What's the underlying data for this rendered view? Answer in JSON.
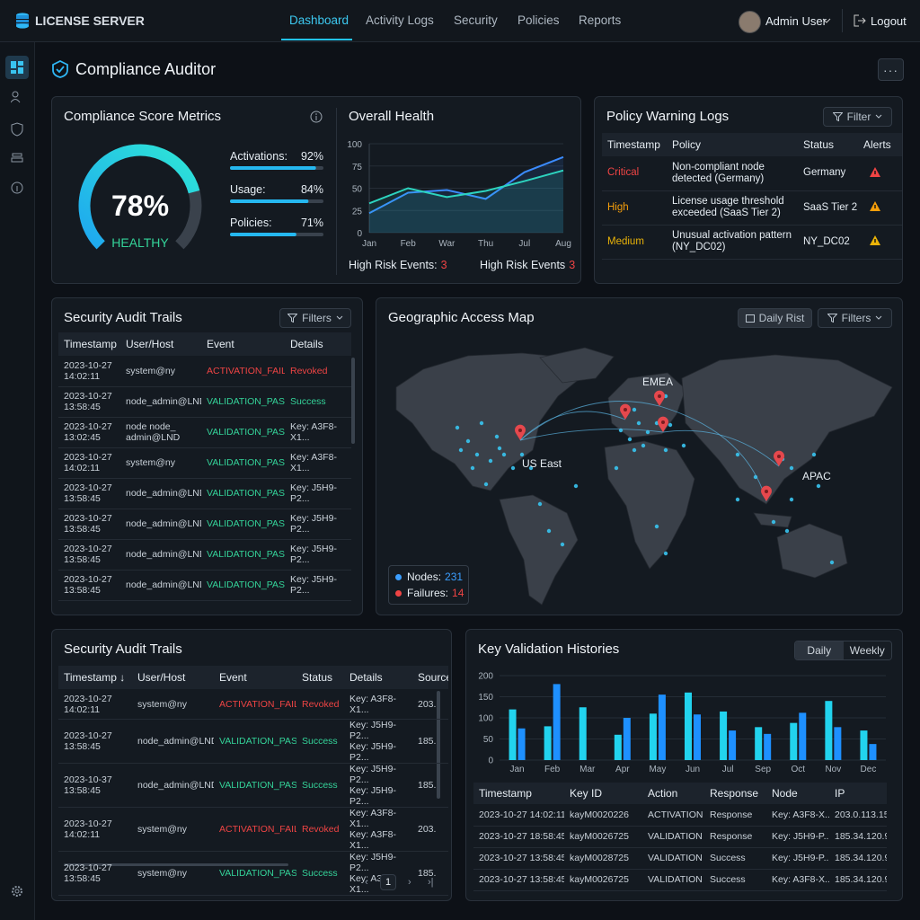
{
  "nav": {
    "brand": "LICENSE SERVER",
    "tabs": [
      "Dashboard",
      "Activity Logs",
      "Security",
      "Policies",
      "Reports"
    ],
    "user": "Admin User",
    "logout": "Logout"
  },
  "page_title": "Compliance Auditor",
  "compliance": {
    "title": "Compliance Score Metrics",
    "score": {
      "value": 78,
      "label": "78%"
    },
    "status": "HEALTHY",
    "metrics": [
      {
        "label": "Activations:",
        "value": 92,
        "value_label": "92%"
      },
      {
        "label": "Usage:",
        "value": 84,
        "value_label": "84%"
      },
      {
        "label": "Policies:",
        "value": 71,
        "value_label": "71%"
      }
    ]
  },
  "health": {
    "title": "Overall Health",
    "chart_data": {
      "type": "line",
      "categories": [
        "Jan",
        "Feb",
        "War",
        "Thu",
        "Jul",
        "Aug"
      ],
      "series": [
        {
          "color": "#3b8bff",
          "values": [
            22,
            45,
            48,
            38,
            68,
            85
          ]
        },
        {
          "color": "#2dd4bf",
          "values": [
            33,
            50,
            40,
            47,
            58,
            70
          ]
        }
      ],
      "ylim": [
        0,
        100
      ],
      "yticks": [
        0,
        25,
        50,
        75,
        100
      ]
    },
    "stats": [
      {
        "label": "High Risk Events:",
        "value": 3
      },
      {
        "label": "High Risk Events",
        "value": 3
      }
    ]
  },
  "policy_logs": {
    "title": "Policy Warning Logs",
    "filter": "Filter",
    "headers": [
      "Timestamp",
      "Policy",
      "Status",
      "Alerts"
    ],
    "rows": [
      {
        "cells": [
          "Critical",
          "Non-compliant node detected (Germany)",
          "Germany"
        ],
        "color": "#ef4444"
      },
      {
        "cells": [
          "High",
          "License usage threshold exceeded (SaaS Tier 2)",
          "SaaS Tier 2"
        ],
        "color": "#f59e0b"
      },
      {
        "cells": [
          "Medium",
          "Unusual activation pattern (NY_DC02)",
          "NY_DC02"
        ],
        "color": "#eab308"
      }
    ]
  },
  "audit_trails": {
    "title": "Security Audit Trails",
    "filter": "Filters",
    "headers": [
      "Timestamp",
      "User/Host",
      "Event",
      "Details"
    ],
    "rows": [
      {
        "cells": [
          "2023-10-27 14:02:11",
          "system@ny",
          "ACTIVATION_FAIL",
          "Revoked"
        ],
        "color": "#ef4444",
        "details_color": "#ef4444"
      },
      {
        "cells": [
          "2023-10-27 13:58:45",
          "node_admin@LND",
          "VALIDATION_PASS",
          "Success"
        ],
        "color": "#34d399",
        "details_color": "#34d399"
      },
      {
        "cells": [
          "2023-10-27 13:02:45",
          "node node_ admin@LND",
          "VALIDATION_PASS",
          "Key: A3F8-X1..."
        ],
        "color": "#34d399"
      },
      {
        "cells": [
          "2023-10-27 14:02:11",
          "system@ny",
          "VALIDATION_PASS",
          "Key: A3F8-X1..."
        ],
        "color": "#34d399"
      },
      {
        "cells": [
          "2023-10-27 13:58:45",
          "node_admin@LND",
          "VALIDATION_PASS",
          "Key: J5H9-P2..."
        ],
        "color": "#34d399"
      },
      {
        "cells": [
          "2023-10-27 13:58:45",
          "node_admin@LND",
          "VALIDATION_PASS",
          "Key: J5H9-P2..."
        ],
        "color": "#34d399"
      },
      {
        "cells": [
          "2023-10-27 13:58:45",
          "node_admin@LND",
          "VALIDATION_PASS",
          "Key: J5H9-P2..."
        ],
        "color": "#34d399"
      },
      {
        "cells": [
          "2023-10-27 13:58:45",
          "node_admin@LND",
          "VALIDATION_PASS",
          "Key: J5H9-P2..."
        ],
        "color": "#34d399"
      }
    ]
  },
  "map": {
    "title": "Geographic Access Map",
    "range": "Daily Rist",
    "filter": "Filters",
    "regions": [
      "EMEA",
      "US East",
      "APAC"
    ],
    "legend": [
      {
        "label": "Nodes:",
        "value": 231,
        "color": "#3b9eff"
      },
      {
        "label": "Failures:",
        "value": 14,
        "color": "#ef4444"
      }
    ]
  },
  "audit_trails_2": {
    "title": "Security Audit Trails",
    "headers": [
      "Timestamp ↓",
      "User/Host",
      "Event",
      "Status",
      "Details",
      "Source"
    ],
    "rows": [
      {
        "cells": [
          "2023-10-27 14:02:11",
          "system@ny",
          "ACTIVATION_FAIL",
          "Revoked",
          "Key: A3F8-X1...",
          "203."
        ],
        "color": "#ef4444"
      },
      {
        "cells": [
          "2023-10-27 13:58:45",
          "node_admin@LND",
          "VALIDATION_PASS",
          "Success",
          "Key: J5H9-P2...\nKey: J5H9-P2...",
          "185."
        ],
        "color": "#34d399"
      },
      {
        "cells": [
          "2023-10-37 13:58:45",
          "node_admin@LND",
          "VALIDATION_PASS",
          "Success",
          "Key: J5H9-P2...\nKey: J5H9-P2...",
          "185."
        ],
        "color": "#34d399"
      },
      {
        "cells": [
          "2023-10-27 14:02:11",
          "system@ny",
          "ACTIVATION_FAIL",
          "Revoked",
          "Key: A3F8-X1...\nKey: A3F8-X1...",
          "203."
        ],
        "color": "#ef4444"
      },
      {
        "cells": [
          "2023-10-27 13:58:45",
          "system@ny",
          "VALIDATION_PASS",
          "Success",
          "Key: J5H9-P2...\nKey: A3F6-X1...",
          "185."
        ],
        "color": "#34d399"
      },
      {
        "cells": [
          "2023-10-27 14:02:11",
          "system@ny",
          "ACTIVATION_FAIL",
          "Revoked",
          "Key: J5H9-P2...",
          "203."
        ],
        "color": "#ef4444"
      }
    ],
    "page": 1
  },
  "key_validation": {
    "title": "Key Validation Histories",
    "toggle": [
      "Daily",
      "Weekly"
    ],
    "chart_data": {
      "type": "bar",
      "categories": [
        "Jan",
        "Feb",
        "Mar",
        "Apr",
        "May",
        "Jun",
        "Jul",
        "Sep",
        "Oct",
        "Nov",
        "Dec"
      ],
      "series": [
        {
          "color": "#22d3ee",
          "values": [
            120,
            80,
            125,
            60,
            110,
            160,
            115,
            78,
            88,
            140,
            70
          ]
        },
        {
          "color": "#1e90ff",
          "values": [
            75,
            180,
            null,
            100,
            155,
            108,
            70,
            62,
            112,
            78,
            38
          ]
        }
      ],
      "ylim": [
        0,
        200
      ],
      "yticks": [
        0,
        50,
        100,
        150,
        200
      ]
    },
    "table": {
      "headers": [
        "Timestamp",
        "Key ID",
        "Action",
        "Response",
        "Node",
        "IP"
      ],
      "rows": [
        {
          "cells": [
            "2023-10-27 14:02:11",
            "kayM0020226",
            "ACTIVATION",
            "Response",
            "Key: A3F8-X...",
            "203.0.113.15"
          ]
        },
        {
          "cells": [
            "2023-10-27 18:58:45",
            "kayM0026725",
            "VALIDATION",
            "Response",
            "Key: J5H9-P...",
            "185.34.120.90"
          ]
        },
        {
          "cells": [
            "2023-10-27 13:58:45",
            "kayM0028725",
            "VALIDATION",
            "Success",
            "Key: J5H9-P...",
            "185.34.120.90"
          ]
        },
        {
          "cells": [
            "2023-10-27 13:58:45",
            "kayM0026725",
            "VALIDATION",
            "Success",
            "Key: A3F8-X...",
            "185.34.120.90"
          ]
        }
      ]
    }
  }
}
